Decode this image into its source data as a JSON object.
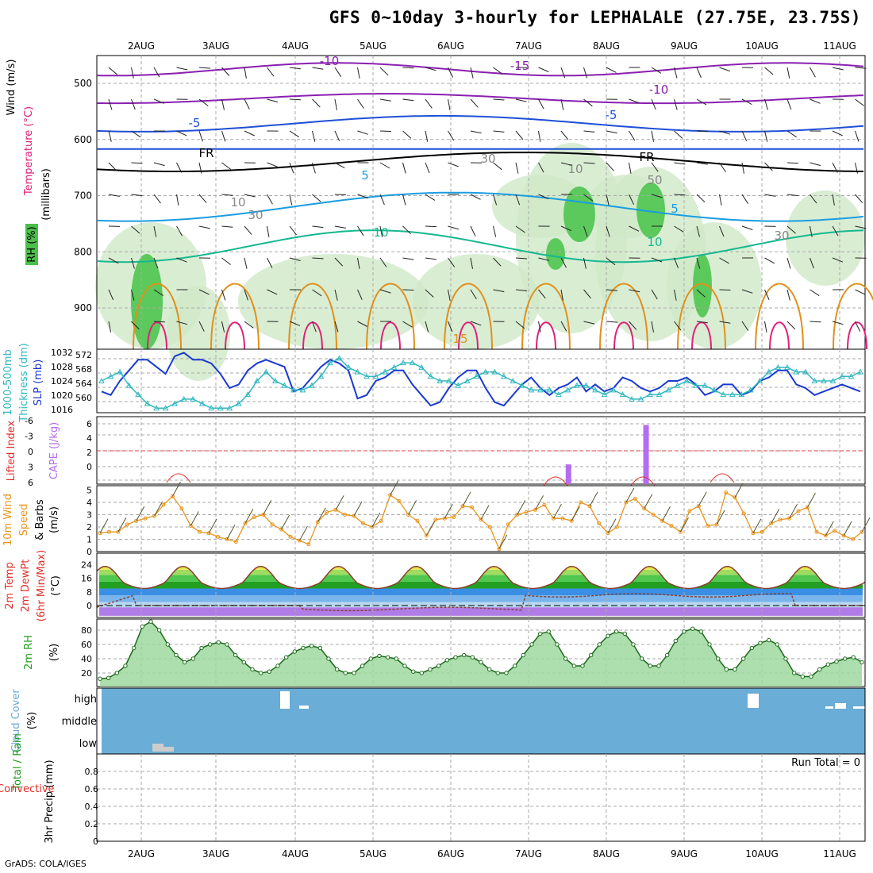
{
  "title": "GFS 0~10day 3-hourly for LEPHALALE (27.75E, 23.75S)",
  "footer": "GrADS: COLA/IGES",
  "colors": {
    "purple": "#8a1fb0",
    "blue": "#1f4fd6",
    "lightblue": "#1a9de0",
    "teal": "#15b890",
    "orange": "#e0901c",
    "magenta": "#e0207a",
    "slp": "#1a3ad1",
    "thick": "#31b8c0",
    "wind": "#e8941c",
    "cape": "#b46cf0",
    "li": "#e0302a",
    "rh": "#1ea01e",
    "cloud": "#6aadd6"
  },
  "dates": [
    "2AUG",
    "3AUG",
    "4AUG",
    "5AUG",
    "6AUG",
    "7AUG",
    "8AUG",
    "9AUG",
    "10AUG",
    "11AUG"
  ],
  "panels": {
    "upper": {
      "ylabel_wind": "Wind (m/s)",
      "ylabel_temp": "Temperature (°C)",
      "ylabel_rh": "RH (%)",
      "ylabel_mb": "(millibars)",
      "ticks": [
        "500",
        "600",
        "700",
        "800",
        "900"
      ],
      "contour_labels": [
        "-10",
        "-15",
        "-10",
        "-5",
        "-5",
        "FR",
        "FR",
        "5",
        "5",
        "10",
        "10",
        "15",
        "30",
        "30",
        "10",
        "30",
        "10",
        "50"
      ]
    },
    "slp": {
      "label1": "1000-500mb",
      "label2": "Thickness (dm)",
      "label3": "SLP (mb)",
      "left_ticks": [
        "572",
        "568",
        "564",
        "560"
      ],
      "right_ticks": [
        "1032",
        "1028",
        "1024",
        "1020",
        "1016"
      ]
    },
    "cape": {
      "label1": "Lifted Index",
      "label2": "CAPE (J/kg)",
      "left_ticks": [
        "-6",
        "-3",
        "0",
        "3",
        "6"
      ],
      "right_ticks": [
        "6",
        "4",
        "2",
        "0"
      ]
    },
    "wind": {
      "label1": "10m Wind",
      "label2": "Speed",
      "label3": "& Barbs",
      "label4": "(m/s)",
      "ticks": [
        "5",
        "4",
        "3",
        "2",
        "1",
        "0"
      ]
    },
    "temp": {
      "label1": "2m Temp",
      "label2": "2m DewPt",
      "label3": "(6hr Min/Max)",
      "label4": "(°C)",
      "ticks": [
        "24",
        "16",
        "8",
        "0"
      ]
    },
    "rh": {
      "label1": "2m RH",
      "label2": "(%)",
      "ticks": [
        "80",
        "60",
        "40",
        "20"
      ]
    },
    "cloud": {
      "label1": "Cloud Cover",
      "label2": "(%)",
      "ticks": [
        "high",
        "middle",
        "low"
      ]
    },
    "precip": {
      "label1": "Total / Rain",
      "label2": "Convective",
      "label3": "3hr Precip (mm)",
      "ticks": [
        "0.8",
        "0.6",
        "0.4",
        "0.2",
        "0"
      ],
      "run_total": "Run Total = 0"
    }
  },
  "chart_data": [
    {
      "type": "line",
      "title": "1000-500mb Thickness / SLP",
      "series": [
        {
          "name": "SLP (mb)",
          "values": [
            1021,
            1020,
            1024,
            1027,
            1030,
            1030,
            1028,
            1026,
            1031,
            1032,
            1030,
            1030,
            1029,
            1026,
            1022,
            1023,
            1027,
            1029,
            1030,
            1029,
            1028,
            1021,
            1022,
            1025,
            1028,
            1030,
            1029,
            1027,
            1019,
            1020,
            1024,
            1025,
            1027,
            1027,
            1023,
            1020,
            1017,
            1018,
            1022,
            1025,
            1027,
            1027,
            1022,
            1018,
            1017,
            1020,
            1023,
            1025,
            1022,
            1020,
            1022,
            1023,
            1025,
            1021,
            1023,
            1021,
            1022,
            1025,
            1024,
            1022,
            1021,
            1022,
            1024,
            1024,
            1025,
            1023,
            1020,
            1021,
            1023,
            1023,
            1020,
            1021,
            1024,
            1025,
            1027,
            1027,
            1023,
            1022,
            1020,
            1021,
            1022,
            1023,
            1022,
            1021
          ]
        },
        {
          "name": "1000-500mb Thickness (dm)",
          "values": [
            566,
            567,
            568,
            565,
            563,
            561,
            560,
            560,
            561,
            562,
            562,
            561,
            560,
            560,
            560,
            561,
            563,
            566,
            568,
            566,
            565,
            564,
            564,
            565,
            567,
            570,
            571,
            569,
            568,
            567,
            567,
            568,
            569,
            570,
            570,
            569,
            567,
            566,
            566,
            565,
            566,
            567,
            568,
            568,
            567,
            566,
            565,
            564,
            564,
            564,
            563,
            564,
            565,
            565,
            564,
            563,
            564,
            563,
            562,
            562,
            563,
            563,
            564,
            565,
            566,
            565,
            565,
            564,
            563,
            563,
            563,
            564,
            566,
            568,
            569,
            569,
            568,
            568,
            566,
            566,
            566,
            567,
            567,
            568
          ]
        }
      ]
    },
    {
      "type": "bar",
      "title": "CAPE (J/kg)",
      "x": [
        7.5,
        8.5
      ],
      "values": [
        2,
        6
      ]
    },
    {
      "type": "line",
      "title": "10m Wind Speed (m/s)",
      "values": [
        1.5,
        1.6,
        1.6,
        2.2,
        2.5,
        2.7,
        2.9,
        3.8,
        4.5,
        3.5,
        2.1,
        1.6,
        1.5,
        1.2,
        1.0,
        0.8,
        2.3,
        2.8,
        3.0,
        2.2,
        1.8,
        1.2,
        0.9,
        0.6,
        2.4,
        3.2,
        3.4,
        3.0,
        2.9,
        2.3,
        2.0,
        2.5,
        4.6,
        4.1,
        3.0,
        2.5,
        1.3,
        2.6,
        2.7,
        2.8,
        3.7,
        3.6,
        2.6,
        2.0,
        0.2,
        2.2,
        3.0,
        3.2,
        3.4,
        3.8,
        2.7,
        2.7,
        2.5,
        4.0,
        3.7,
        2.3,
        1.5,
        2.0,
        4.0,
        4.3,
        3.5,
        3.0,
        2.5,
        2.1,
        1.6,
        3.3,
        3.7,
        2.1,
        2.2,
        4.8,
        4.4,
        3.1,
        1.5,
        1.6,
        2.3,
        2.6,
        2.7,
        3.3,
        3.6,
        1.6,
        1.3,
        1.7,
        1.3,
        1.0,
        1.6
      ]
    },
    {
      "type": "line",
      "title": "2m RH (%)",
      "values": [
        12,
        13,
        20,
        30,
        55,
        85,
        92,
        80,
        60,
        45,
        35,
        40,
        55,
        60,
        63,
        60,
        45,
        35,
        25,
        20,
        22,
        30,
        42,
        50,
        55,
        58,
        55,
        40,
        25,
        20,
        20,
        30,
        40,
        44,
        42,
        40,
        30,
        22,
        20,
        25,
        30,
        38,
        42,
        45,
        42,
        35,
        25,
        20,
        20,
        30,
        45,
        60,
        75,
        78,
        60,
        40,
        30,
        30,
        45,
        60,
        72,
        78,
        75,
        60,
        40,
        30,
        30,
        45,
        65,
        78,
        82,
        78,
        60,
        40,
        25,
        25,
        40,
        55,
        62,
        66,
        60,
        40,
        20,
        15,
        15,
        25,
        32,
        36,
        40,
        42,
        35
      ]
    }
  ]
}
